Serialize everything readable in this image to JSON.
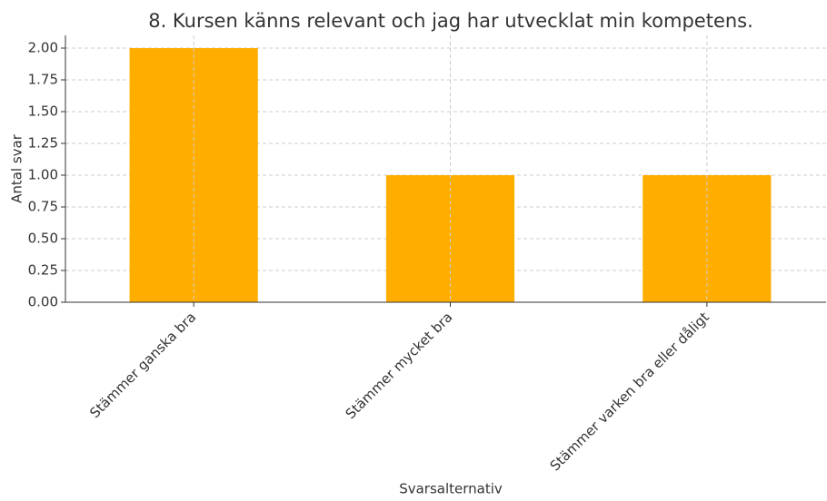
{
  "chart_data": {
    "type": "bar",
    "title": "8. Kursen känns relevant och jag har utvecklat min kompetens.",
    "x_label": "Svarsalternativ",
    "y_label": "Antal svar",
    "categories": [
      "Stämmer ganska bra",
      "Stämmer mycket bra",
      "Stämmer varken bra eller dåligt"
    ],
    "values": [
      2,
      1,
      1
    ],
    "color": "#ffae00",
    "ylim": [
      0,
      2.1
    ],
    "yticks": [
      {
        "value": 0,
        "label": "0.00"
      },
      {
        "value": 0.25,
        "label": "0.25"
      },
      {
        "value": 0.5,
        "label": "0.50"
      },
      {
        "value": 0.75,
        "label": "0.75"
      },
      {
        "value": 1,
        "label": "1.00"
      },
      {
        "value": 1.25,
        "label": "1.25"
      },
      {
        "value": 1.5,
        "label": "1.50"
      },
      {
        "value": 1.75,
        "label": "1.75"
      },
      {
        "value": 2,
        "label": "2.00"
      }
    ],
    "grid": true
  }
}
